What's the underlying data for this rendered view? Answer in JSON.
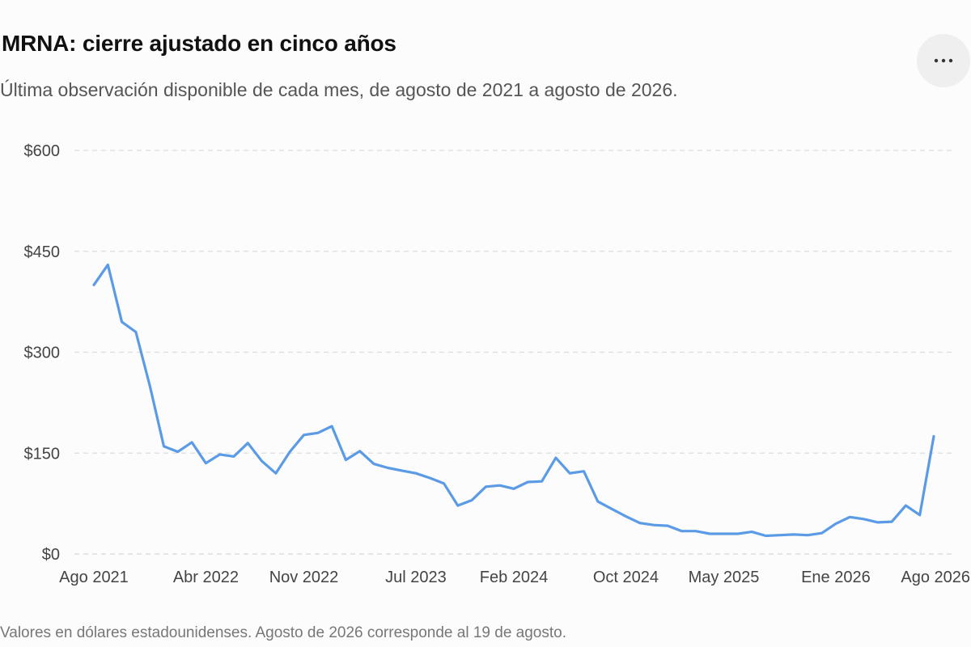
{
  "header": {
    "title": "MRNA: cierre ajustado en cinco años",
    "subtitle": "Última observación disponible de cada mes, de agosto de 2021 a agosto de 2026.",
    "more_button_label": "...",
    "more_icon": "more-horizontal-icon"
  },
  "footnote": "Valores en dólares estadounidenses. Agosto de 2026 corresponde al 19 de agosto.",
  "colors": {
    "line": "#5b9be6",
    "grid": "#dddddd",
    "axis": "#333333",
    "background": "#fcfcfc"
  },
  "chart_data": {
    "type": "line",
    "title": "MRNA: cierre ajustado en cinco años",
    "subtitle": "Última observación disponible de cada mes, de agosto de 2021 a agosto de 2026.",
    "xlabel": "",
    "ylabel": "",
    "ylim": [
      0,
      600
    ],
    "y_ticks": [
      0,
      150,
      300,
      450,
      600
    ],
    "y_tick_labels": [
      "$0",
      "$150",
      "$300",
      "$450",
      "$600"
    ],
    "x_ticks": [
      {
        "date": "2021-08",
        "label": "Ago 2021"
      },
      {
        "date": "2022-04",
        "label": "Abr 2022"
      },
      {
        "date": "2022-11",
        "label": "Nov 2022"
      },
      {
        "date": "2023-07",
        "label": "Jul 2023"
      },
      {
        "date": "2024-02",
        "label": "Feb 2024"
      },
      {
        "date": "2024-10",
        "label": "Oct 2024"
      },
      {
        "date": "2025-05",
        "label": "May 2025"
      },
      {
        "date": "2026-01",
        "label": "Ene 2026"
      },
      {
        "date": "2026-08",
        "label": "Ago 2026"
      }
    ],
    "grid": true,
    "legend": false,
    "series": [
      {
        "x": [
          "2021-08",
          "2021-09",
          "2021-10",
          "2021-11",
          "2021-12",
          "2022-01",
          "2022-02",
          "2022-03",
          "2022-04",
          "2022-05",
          "2022-06",
          "2022-07",
          "2022-08",
          "2022-09",
          "2022-10",
          "2022-11",
          "2022-12",
          "2023-01",
          "2023-02",
          "2023-03",
          "2023-04",
          "2023-05",
          "2023-06",
          "2023-07",
          "2023-08",
          "2023-09",
          "2023-10",
          "2023-11",
          "2023-12",
          "2024-01",
          "2024-02",
          "2024-03",
          "2024-04",
          "2024-05",
          "2024-06",
          "2024-07",
          "2024-08",
          "2024-09",
          "2024-10",
          "2024-11",
          "2024-12",
          "2025-01",
          "2025-02",
          "2025-03",
          "2025-04",
          "2025-05",
          "2025-06",
          "2025-07",
          "2025-08",
          "2025-09",
          "2025-10",
          "2025-11",
          "2025-12",
          "2026-01",
          "2026-02",
          "2026-03",
          "2026-04",
          "2026-05",
          "2026-06",
          "2026-07",
          "2026-08"
        ],
        "values": [
          400,
          430,
          345,
          330,
          250,
          160,
          152,
          166,
          135,
          148,
          145,
          165,
          138,
          120,
          152,
          177,
          180,
          190,
          140,
          153,
          134,
          128,
          124,
          120,
          113,
          105,
          72,
          80,
          100,
          102,
          97,
          107,
          108,
          143,
          120,
          123,
          78,
          67,
          56,
          46,
          43,
          42,
          34,
          34,
          30,
          30,
          30,
          33,
          27,
          28,
          29,
          28,
          31,
          45,
          55,
          52,
          47,
          48,
          72,
          58,
          175
        ]
      }
    ]
  }
}
